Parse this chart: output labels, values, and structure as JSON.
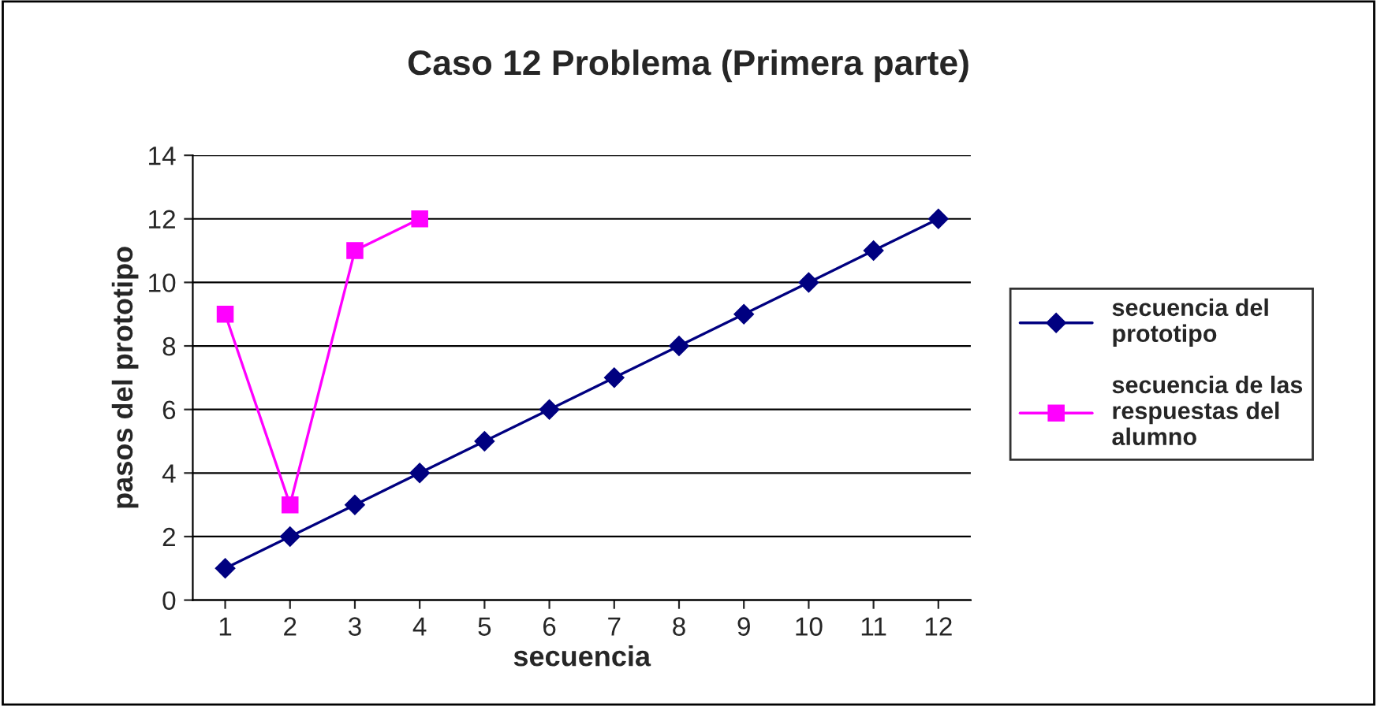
{
  "chart_data": {
    "type": "line",
    "title": "Caso 12 Problema (Primera parte)",
    "xlabel": "secuencia",
    "ylabel": "pasos del prototipo",
    "categories": [
      "1",
      "2",
      "3",
      "4",
      "5",
      "6",
      "7",
      "8",
      "9",
      "10",
      "11",
      "12"
    ],
    "series": [
      {
        "name": "secuencia del\nprototipo",
        "color": "#000080",
        "marker": "diamond",
        "values": [
          1,
          2,
          3,
          4,
          5,
          6,
          7,
          8,
          9,
          10,
          11,
          12
        ]
      },
      {
        "name": "secuencia de las\nrespuestas del\nalumno",
        "color": "#ff00ff",
        "marker": "square",
        "values": [
          9,
          3,
          11,
          12,
          null,
          null,
          null,
          null,
          null,
          null,
          null,
          null
        ]
      }
    ],
    "ylim": [
      0,
      14
    ],
    "yticks": [
      0,
      2,
      4,
      6,
      8,
      10,
      12,
      14
    ],
    "grid": "y",
    "legend": "right"
  }
}
